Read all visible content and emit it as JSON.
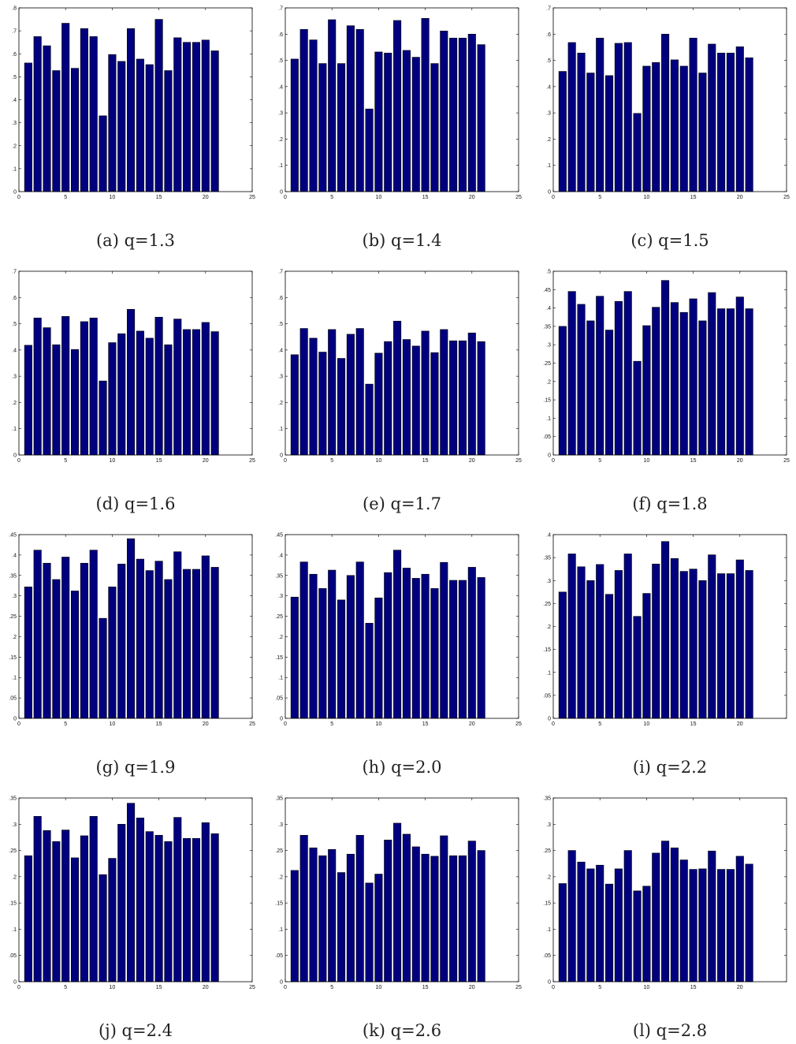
{
  "colors": {
    "bar": "#00007f",
    "axis": "#000000"
  },
  "chart_data": [
    {
      "type": "bar",
      "caption": "(a) q=1.3",
      "xlim": [
        0,
        25
      ],
      "ylim": [
        0,
        0.8
      ],
      "xticks": [
        0,
        5,
        10,
        15,
        20,
        25
      ],
      "yticks": [
        0,
        0.1,
        0.2,
        0.3,
        0.4,
        0.5,
        0.6,
        0.7,
        0.8
      ],
      "x": [
        1,
        2,
        3,
        4,
        5,
        6,
        7,
        8,
        9,
        10,
        11,
        12,
        13,
        14,
        15,
        16,
        17,
        18,
        19,
        20,
        21
      ],
      "values": [
        0.56,
        0.675,
        0.635,
        0.527,
        0.733,
        0.537,
        0.71,
        0.675,
        0.33,
        0.597,
        0.567,
        0.71,
        0.577,
        0.553,
        0.75,
        0.527,
        0.67,
        0.65,
        0.65,
        0.66,
        0.613
      ]
    },
    {
      "type": "bar",
      "caption": "(b) q=1.4",
      "xlim": [
        0,
        25
      ],
      "ylim": [
        0,
        0.7
      ],
      "xticks": [
        0,
        5,
        10,
        15,
        20,
        25
      ],
      "yticks": [
        0,
        0.1,
        0.2,
        0.3,
        0.4,
        0.5,
        0.6,
        0.7
      ],
      "x": [
        1,
        2,
        3,
        4,
        5,
        6,
        7,
        8,
        9,
        10,
        11,
        12,
        13,
        14,
        15,
        16,
        17,
        18,
        19,
        20,
        21
      ],
      "values": [
        0.505,
        0.618,
        0.578,
        0.488,
        0.655,
        0.488,
        0.632,
        0.618,
        0.315,
        0.532,
        0.528,
        0.652,
        0.538,
        0.512,
        0.66,
        0.488,
        0.612,
        0.585,
        0.585,
        0.6,
        0.56
      ]
    },
    {
      "type": "bar",
      "caption": "(c) q=1.5",
      "xlim": [
        0,
        25
      ],
      "ylim": [
        0,
        0.7
      ],
      "xticks": [
        0,
        5,
        10,
        15,
        20,
        25
      ],
      "yticks": [
        0,
        0.1,
        0.2,
        0.3,
        0.4,
        0.5,
        0.6,
        0.7
      ],
      "x": [
        1,
        2,
        3,
        4,
        5,
        6,
        7,
        8,
        9,
        10,
        11,
        12,
        13,
        14,
        15,
        16,
        17,
        18,
        19,
        20,
        21
      ],
      "values": [
        0.458,
        0.568,
        0.528,
        0.452,
        0.585,
        0.442,
        0.565,
        0.568,
        0.298,
        0.478,
        0.492,
        0.6,
        0.502,
        0.478,
        0.585,
        0.452,
        0.562,
        0.528,
        0.528,
        0.552,
        0.51
      ]
    },
    {
      "type": "bar",
      "caption": "(d) q=1.6",
      "xlim": [
        0,
        25
      ],
      "ylim": [
        0,
        0.7
      ],
      "xticks": [
        0,
        5,
        10,
        15,
        20,
        25
      ],
      "yticks": [
        0,
        0.1,
        0.2,
        0.3,
        0.4,
        0.5,
        0.6,
        0.7
      ],
      "x": [
        1,
        2,
        3,
        4,
        5,
        6,
        7,
        8,
        9,
        10,
        11,
        12,
        13,
        14,
        15,
        16,
        17,
        18,
        19,
        20,
        21
      ],
      "values": [
        0.418,
        0.522,
        0.485,
        0.42,
        0.528,
        0.402,
        0.508,
        0.522,
        0.282,
        0.428,
        0.462,
        0.555,
        0.472,
        0.445,
        0.525,
        0.42,
        0.518,
        0.478,
        0.478,
        0.505,
        0.47
      ]
    },
    {
      "type": "bar",
      "caption": "(e) q=1.7",
      "xlim": [
        0,
        25
      ],
      "ylim": [
        0,
        0.7
      ],
      "xticks": [
        0,
        5,
        10,
        15,
        20,
        25
      ],
      "yticks": [
        0,
        0.1,
        0.2,
        0.3,
        0.4,
        0.5,
        0.6,
        0.7
      ],
      "x": [
        1,
        2,
        3,
        4,
        5,
        6,
        7,
        8,
        9,
        10,
        11,
        12,
        13,
        14,
        15,
        16,
        17,
        18,
        19,
        20,
        21
      ],
      "values": [
        0.382,
        0.482,
        0.445,
        0.392,
        0.478,
        0.368,
        0.46,
        0.482,
        0.27,
        0.388,
        0.432,
        0.51,
        0.44,
        0.415,
        0.472,
        0.39,
        0.478,
        0.435,
        0.435,
        0.465,
        0.432
      ]
    },
    {
      "type": "bar",
      "caption": "(f) q=1.8",
      "xlim": [
        0,
        25
      ],
      "ylim": [
        0,
        0.5
      ],
      "xticks": [
        0,
        5,
        10,
        15,
        20,
        25
      ],
      "yticks": [
        0,
        0.05,
        0.1,
        0.15,
        0.2,
        0.25,
        0.3,
        0.35,
        0.4,
        0.45,
        0.5
      ],
      "x": [
        1,
        2,
        3,
        4,
        5,
        6,
        7,
        8,
        9,
        10,
        11,
        12,
        13,
        14,
        15,
        16,
        17,
        18,
        19,
        20,
        21
      ],
      "values": [
        0.35,
        0.445,
        0.41,
        0.365,
        0.432,
        0.34,
        0.418,
        0.445,
        0.255,
        0.352,
        0.402,
        0.475,
        0.415,
        0.388,
        0.425,
        0.365,
        0.442,
        0.398,
        0.398,
        0.43,
        0.398
      ]
    },
    {
      "type": "bar",
      "caption": "(g) q=1.9",
      "xlim": [
        0,
        25
      ],
      "ylim": [
        0,
        0.45
      ],
      "xticks": [
        0,
        5,
        10,
        15,
        20,
        25
      ],
      "yticks": [
        0,
        0.05,
        0.1,
        0.15,
        0.2,
        0.25,
        0.3,
        0.35,
        0.4,
        0.45
      ],
      "x": [
        1,
        2,
        3,
        4,
        5,
        6,
        7,
        8,
        9,
        10,
        11,
        12,
        13,
        14,
        15,
        16,
        17,
        18,
        19,
        20,
        21
      ],
      "values": [
        0.322,
        0.412,
        0.38,
        0.34,
        0.395,
        0.312,
        0.38,
        0.412,
        0.245,
        0.322,
        0.378,
        0.44,
        0.39,
        0.362,
        0.385,
        0.34,
        0.408,
        0.365,
        0.365,
        0.398,
        0.37
      ]
    },
    {
      "type": "bar",
      "caption": "(h) q=2.0",
      "xlim": [
        0,
        25
      ],
      "ylim": [
        0,
        0.45
      ],
      "xticks": [
        0,
        5,
        10,
        15,
        20,
        25
      ],
      "yticks": [
        0,
        0.05,
        0.1,
        0.15,
        0.2,
        0.25,
        0.3,
        0.35,
        0.4,
        0.45
      ],
      "x": [
        1,
        2,
        3,
        4,
        5,
        6,
        7,
        8,
        9,
        10,
        11,
        12,
        13,
        14,
        15,
        16,
        17,
        18,
        19,
        20,
        21
      ],
      "values": [
        0.297,
        0.383,
        0.353,
        0.318,
        0.363,
        0.29,
        0.35,
        0.383,
        0.233,
        0.295,
        0.357,
        0.412,
        0.368,
        0.343,
        0.353,
        0.318,
        0.382,
        0.338,
        0.338,
        0.37,
        0.345
      ]
    },
    {
      "type": "bar",
      "caption": "(i) q=2.2",
      "xlim": [
        0,
        25
      ],
      "ylim": [
        0,
        0.4
      ],
      "xticks": [
        0,
        5,
        10,
        15,
        20
      ],
      "yticks": [
        0,
        0.05,
        0.1,
        0.15,
        0.2,
        0.25,
        0.3,
        0.35,
        0.4
      ],
      "x": [
        1,
        2,
        3,
        4,
        5,
        6,
        7,
        8,
        9,
        10,
        11,
        12,
        13,
        14,
        15,
        16,
        17,
        18,
        19,
        20,
        21
      ],
      "values": [
        0.275,
        0.358,
        0.33,
        0.3,
        0.335,
        0.27,
        0.322,
        0.358,
        0.222,
        0.272,
        0.336,
        0.385,
        0.348,
        0.32,
        0.325,
        0.3,
        0.356,
        0.315,
        0.315,
        0.345,
        0.322
      ]
    },
    {
      "type": "bar",
      "caption": "(j) q=2.4",
      "xlim": [
        0,
        25
      ],
      "ylim": [
        0,
        0.35
      ],
      "xticks": [
        0,
        5,
        10,
        15,
        20,
        25
      ],
      "yticks": [
        0,
        0.05,
        0.1,
        0.15,
        0.2,
        0.25,
        0.3,
        0.35
      ],
      "x": [
        1,
        2,
        3,
        4,
        5,
        6,
        7,
        8,
        9,
        10,
        11,
        12,
        13,
        14,
        15,
        16,
        17,
        18,
        19,
        20,
        21
      ],
      "values": [
        0.24,
        0.315,
        0.288,
        0.267,
        0.289,
        0.236,
        0.278,
        0.315,
        0.204,
        0.235,
        0.3,
        0.34,
        0.312,
        0.286,
        0.279,
        0.267,
        0.313,
        0.273,
        0.273,
        0.303,
        0.282
      ]
    },
    {
      "type": "bar",
      "caption": "(k) q=2.6",
      "xlim": [
        0,
        25
      ],
      "ylim": [
        0,
        0.35
      ],
      "xticks": [
        0,
        5,
        10,
        15,
        20,
        25
      ],
      "yticks": [
        0,
        0.05,
        0.1,
        0.15,
        0.2,
        0.25,
        0.3,
        0.35
      ],
      "x": [
        1,
        2,
        3,
        4,
        5,
        6,
        7,
        8,
        9,
        10,
        11,
        12,
        13,
        14,
        15,
        16,
        17,
        18,
        19,
        20,
        21
      ],
      "values": [
        0.212,
        0.279,
        0.255,
        0.24,
        0.252,
        0.208,
        0.243,
        0.279,
        0.188,
        0.205,
        0.27,
        0.302,
        0.281,
        0.257,
        0.243,
        0.239,
        0.278,
        0.24,
        0.24,
        0.268,
        0.25
      ]
    },
    {
      "type": "bar",
      "caption": "(l) q=2.8",
      "xlim": [
        0,
        25
      ],
      "ylim": [
        0,
        0.35
      ],
      "xticks": [
        0,
        5,
        10,
        15,
        20
      ],
      "yticks": [
        0,
        0.05,
        0.1,
        0.15,
        0.2,
        0.25,
        0.3,
        0.35
      ],
      "x": [
        1,
        2,
        3,
        4,
        5,
        6,
        7,
        8,
        9,
        10,
        11,
        12,
        13,
        14,
        15,
        16,
        17,
        18,
        19,
        20,
        21
      ],
      "values": [
        0.187,
        0.25,
        0.228,
        0.215,
        0.222,
        0.186,
        0.215,
        0.25,
        0.173,
        0.182,
        0.245,
        0.268,
        0.255,
        0.232,
        0.214,
        0.215,
        0.249,
        0.214,
        0.214,
        0.239,
        0.224
      ]
    }
  ]
}
